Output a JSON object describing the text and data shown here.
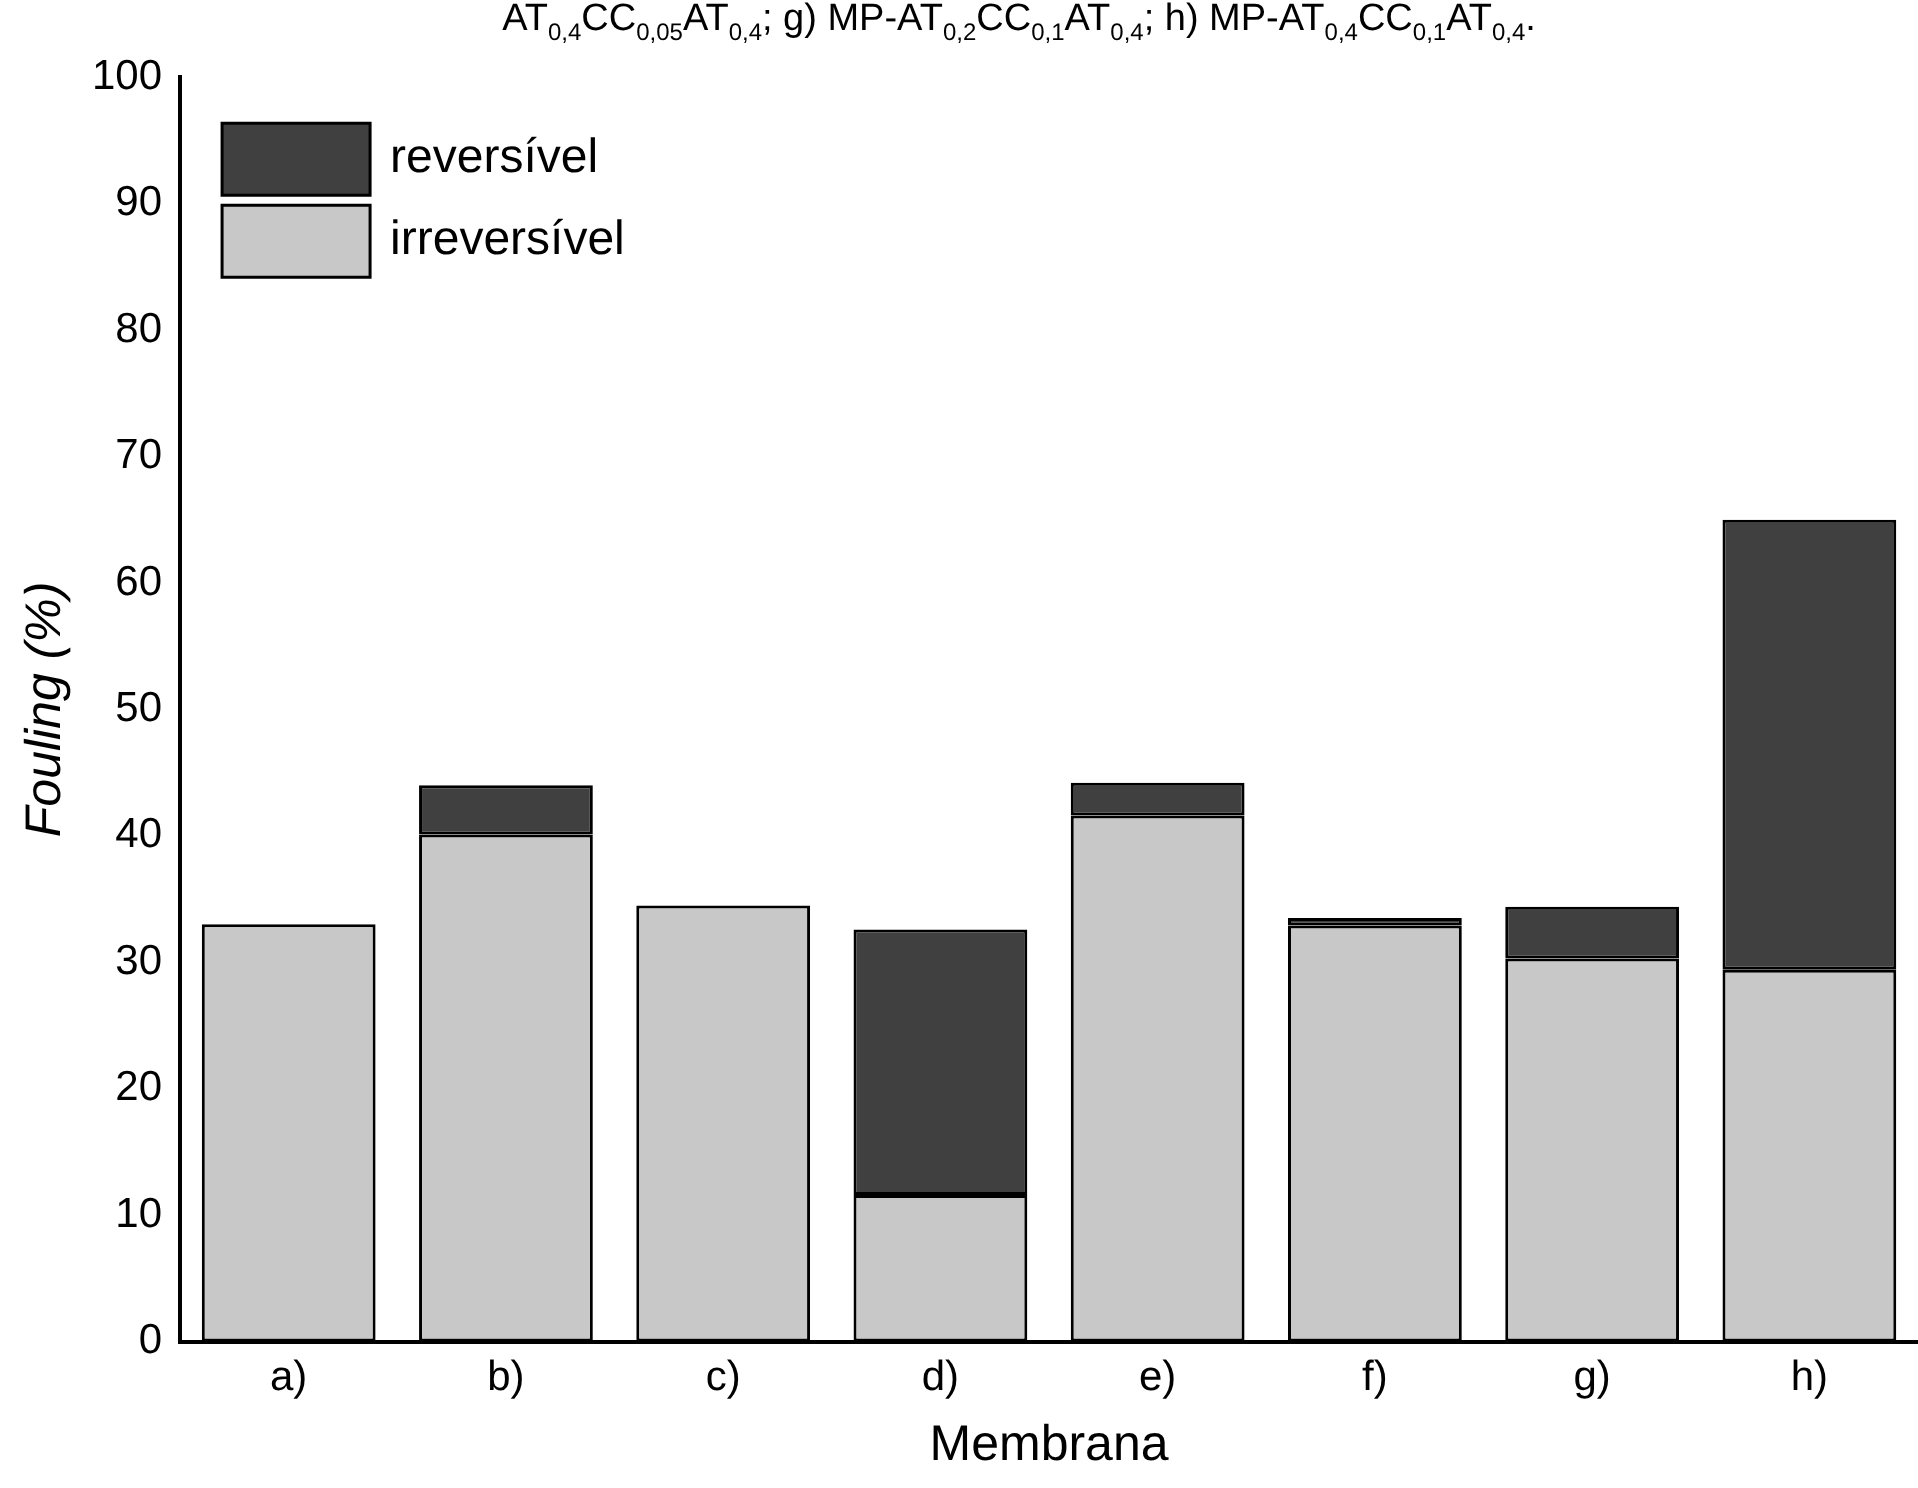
{
  "chart_data": {
    "type": "bar",
    "stacked": true,
    "xlabel": "Membrana",
    "ylabel": "Fouling (%)",
    "annotations": [
      "AT$_{0,4}$CC$_{0,05}$AT$_{0,4}$; g) MP-AT$_{0,2}$CC$_{0,1}$AT$_{0,4}$; h) MP-AT$_{0,4}$CC$_{0,1}$AT$_{0,4}$."
    ],
    "categories": [
      "a)",
      "b)",
      "c)",
      "d)",
      "e)",
      "f)",
      "g)",
      "h)"
    ],
    "series": [
      {
        "name": "irreversível",
        "color": "#c8c8c8",
        "values": [
          33.0,
          40.1,
          34.5,
          11.6,
          41.6,
          32.9,
          30.3,
          29.4
        ]
      },
      {
        "name": "reversível",
        "color": "#404040",
        "values": [
          0,
          3.9,
          0,
          21.0,
          2.6,
          0.6,
          4.1,
          35.6
        ]
      }
    ],
    "ylim": [
      0,
      100
    ],
    "yticks": [
      0,
      10,
      20,
      30,
      40,
      50,
      60,
      70,
      80,
      90,
      100
    ],
    "grid": false,
    "legend": "top left"
  }
}
